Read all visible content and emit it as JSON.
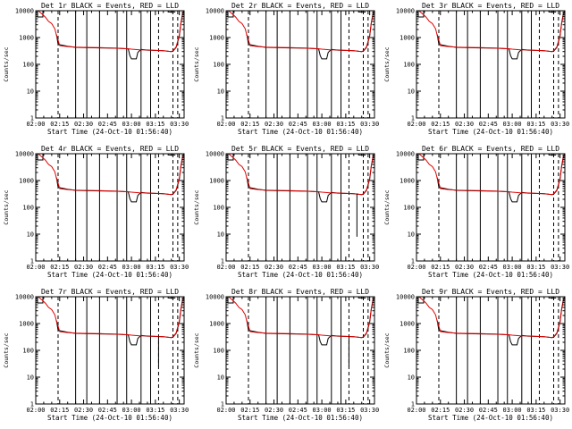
{
  "chart_data": [
    {
      "type": "line",
      "title": "Det 1r BLACK = Events, RED = LLD"
    },
    {
      "type": "line",
      "title": "Det 2r BLACK = Events, RED = LLD"
    },
    {
      "type": "line",
      "title": "Det 3r BLACK = Events, RED = LLD"
    },
    {
      "type": "line",
      "title": "Det 4r BLACK = Events, RED = LLD"
    },
    {
      "type": "line",
      "title": "Det 5r BLACK = Events, RED = LLD"
    },
    {
      "type": "line",
      "title": "Det 6r BLACK = Events, RED = LLD"
    },
    {
      "type": "line",
      "title": "Det 7r BLACK = Events, RED = LLD"
    },
    {
      "type": "line",
      "title": "Det 8r BLACK = Events, RED = LLD"
    },
    {
      "type": "line",
      "title": "Det 9r BLACK = Events, RED = LLD"
    }
  ],
  "shared": {
    "xlabel": "Start Time (24-Oct-10 01:56:40)",
    "ylabel": "Counts/sec",
    "xlim_minutes": [
      120,
      213
    ],
    "ylim": [
      1,
      10000
    ],
    "yscale": "log",
    "x_ticks": [
      {
        "v": 120,
        "label": "02:00"
      },
      {
        "v": 135,
        "label": "02:15"
      },
      {
        "v": 150,
        "label": "02:30"
      },
      {
        "v": 165,
        "label": "02:45"
      },
      {
        "v": 180,
        "label": "03:00"
      },
      {
        "v": 195,
        "label": "03:15"
      },
      {
        "v": 210,
        "label": "03:30"
      }
    ],
    "y_ticks": [
      {
        "v": 1,
        "label": "1"
      },
      {
        "v": 10,
        "label": "10"
      },
      {
        "v": 100,
        "label": "100"
      },
      {
        "v": 1000,
        "label": "1000"
      },
      {
        "v": 10000,
        "label": "10000"
      }
    ],
    "solid_vlines": [
      145,
      152,
      160,
      171,
      177,
      186,
      192
    ],
    "dashed_vlines": [
      134,
      197,
      206,
      209
    ],
    "bracket": {
      "start": 203,
      "end": 207.5,
      "level": 9000
    },
    "red_series": {
      "name": "LLD",
      "x": [
        120,
        122,
        124,
        126,
        128,
        130,
        132,
        133,
        134,
        135,
        140,
        145,
        150,
        160,
        170,
        178,
        180,
        185,
        190,
        195,
        200,
        205,
        206,
        208,
        210,
        211,
        212,
        213
      ],
      "y": [
        12000,
        9500,
        7500,
        5800,
        4000,
        3300,
        2100,
        1200,
        800,
        500,
        460,
        440,
        430,
        420,
        400,
        380,
        370,
        350,
        345,
        330,
        320,
        300,
        320,
        450,
        1200,
        3500,
        7500,
        10000
      ]
    },
    "black_series": {
      "name": "Events",
      "x": [
        133,
        134,
        140,
        145,
        150,
        160,
        170,
        178,
        179,
        180,
        183,
        184,
        186,
        190,
        195,
        200,
        205,
        206,
        208,
        210,
        211,
        212,
        213
      ],
      "y": [
        1300,
        560,
        470,
        430,
        420,
        410,
        400,
        380,
        210,
        160,
        160,
        280,
        360,
        340,
        330,
        320,
        300,
        310,
        430,
        1100,
        3400,
        7000,
        9500
      ]
    }
  }
}
